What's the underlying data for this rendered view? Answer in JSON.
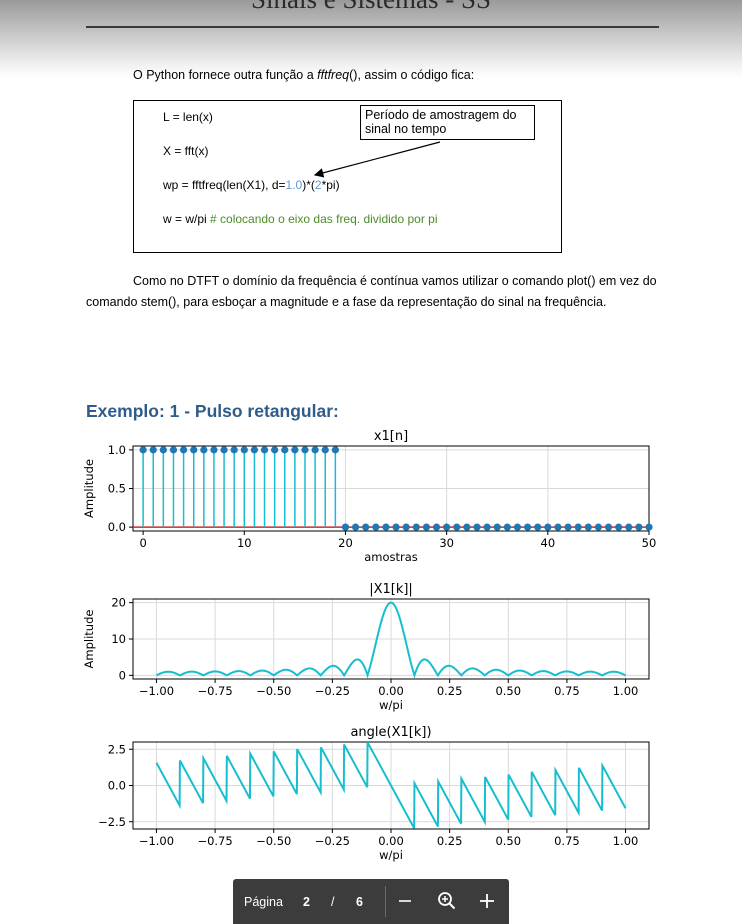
{
  "header": {
    "title": "Sinais e Sistemas - SS"
  },
  "intro": {
    "pre": "O Python fornece outra função a ",
    "func": "fftfreq",
    "post": "(), assim o código fica:"
  },
  "code": {
    "l1": "L = len(x)",
    "l2": "X = fft(x)",
    "l3a": "wp = fftfreq(len(X1), d=",
    "l3num1": "1.0",
    "l3b": ")*(",
    "l3num2": "2",
    "l3c": "*pi)",
    "l4a": "w = w/pi ",
    "l4comment": "# colocando o eixo das freq. dividido por pi",
    "callout": "Período de amostragem do sinal no tempo"
  },
  "paragraph": "Como no DTFT o domínio da frequência é contínua vamos utilizar o comando plot() em vez do comando stem(), para esboçar a magnitude e a fase da representação do sinal na frequência.",
  "section_title": "Exemplo: 1 - Pulso retangular:",
  "colors": {
    "line": "#17becf",
    "stem_marker": "#1f77b4",
    "baseline": "#d62728",
    "heading": "#2f5c8a"
  },
  "chart_data": [
    {
      "type": "stem",
      "title": "x1[n]",
      "xlabel": "amostras",
      "ylabel": "Amplitude",
      "xlim": [
        -1,
        50
      ],
      "ylim": [
        -0.05,
        1.05
      ],
      "xticks": [
        "0",
        "10",
        "20",
        "30",
        "40",
        "50"
      ],
      "yticks": [
        "0.0",
        "0.5",
        "1.0"
      ],
      "grid": true,
      "x": [
        0,
        1,
        2,
        3,
        4,
        5,
        6,
        7,
        8,
        9,
        10,
        11,
        12,
        13,
        14,
        15,
        16,
        17,
        18,
        19,
        20,
        21,
        22,
        23,
        24,
        25,
        26,
        27,
        28,
        29,
        30,
        31,
        32,
        33,
        34,
        35,
        36,
        37,
        38,
        39,
        40,
        41,
        42,
        43,
        44,
        45,
        46,
        47,
        48,
        49,
        50
      ],
      "y": [
        1,
        1,
        1,
        1,
        1,
        1,
        1,
        1,
        1,
        1,
        1,
        1,
        1,
        1,
        1,
        1,
        1,
        1,
        1,
        1,
        0,
        0,
        0,
        0,
        0,
        0,
        0,
        0,
        0,
        0,
        0,
        0,
        0,
        0,
        0,
        0,
        0,
        0,
        0,
        0,
        0,
        0,
        0,
        0,
        0,
        0,
        0,
        0,
        0,
        0,
        0
      ]
    },
    {
      "type": "line",
      "title": "|X1[k]|",
      "xlabel": "w/pi",
      "ylabel": "Amplitude",
      "xlim": [
        -1.1,
        1.1
      ],
      "ylim": [
        -1,
        21
      ],
      "xticks": [
        "−1.00",
        "−0.75",
        "−0.50",
        "−0.25",
        "0.00",
        "0.25",
        "0.50",
        "0.75",
        "1.00"
      ],
      "yticks": [
        "0",
        "10",
        "20"
      ],
      "grid": true,
      "expression": "|sin(10πw)/sin(πw/2)|, w/pi from -1 to 1",
      "peak": {
        "x": 0.0,
        "y": 20
      }
    },
    {
      "type": "line",
      "title": "angle(X1[k])",
      "xlabel": "w/pi",
      "ylabel": "",
      "xlim": [
        -1.1,
        1.1
      ],
      "ylim": [
        -3.0,
        3.0
      ],
      "xticks": [
        "−1.00",
        "−0.75",
        "−0.50",
        "−0.25",
        "0.00",
        "0.25",
        "0.50",
        "0.75",
        "1.00"
      ],
      "yticks": [
        "−2.5",
        "0.0",
        "2.5"
      ],
      "grid": true,
      "expression": "sawtooth phase, wraps every 0.1 in w/pi, peaks near ±2.7 close to 0"
    }
  ],
  "toolbar": {
    "page_label": "Página",
    "current": "2",
    "sep": "/",
    "total": "6"
  }
}
